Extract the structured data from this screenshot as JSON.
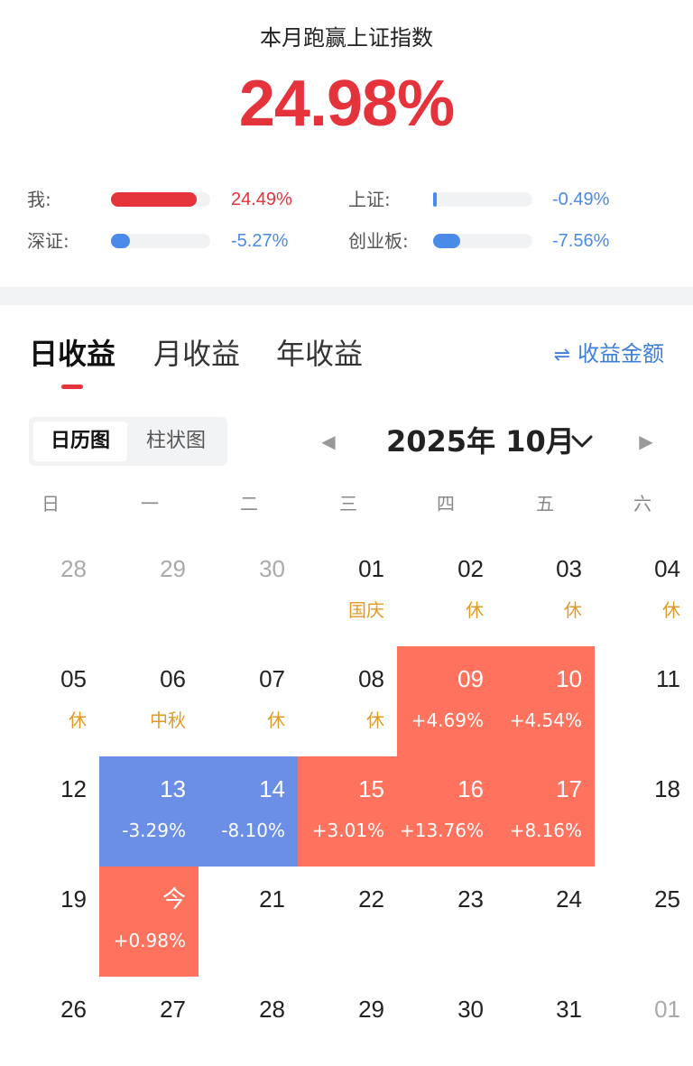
{
  "summary": {
    "title": "本月跑赢上证指数",
    "value": "24.98%"
  },
  "comparisons": [
    {
      "label": "我:",
      "value": "24.49%",
      "fraction": 0.86,
      "color": "#e4333b"
    },
    {
      "label": "上证:",
      "value": "-0.49%",
      "fraction": 0.01,
      "color": "#4a8bea"
    },
    {
      "label": "深证:",
      "value": "-5.27%",
      "fraction": 0.19,
      "color": "#4a8bea"
    },
    {
      "label": "创业板:",
      "value": "-7.56%",
      "fraction": 0.27,
      "color": "#4a8bea"
    }
  ],
  "tabs": [
    "日收益",
    "月收益",
    "年收益"
  ],
  "toggle_amount": "收益金额",
  "view_segments": [
    "日历图",
    "柱状图"
  ],
  "month_title": "2025年 10月",
  "weekdays": [
    "日",
    "一",
    "二",
    "三",
    "四",
    "五",
    "六"
  ],
  "colors": {
    "up": "#ff725e",
    "down": "#6b8fe6",
    "holiday": "#e09a2a",
    "accent": "#e4333b",
    "link": "#3d7fd9"
  },
  "calendar": [
    [
      {
        "day": "28",
        "dim": true
      },
      {
        "day": "29",
        "dim": true
      },
      {
        "day": "30",
        "dim": true
      },
      {
        "day": "01",
        "sub": "国庆",
        "kind": "holiday"
      },
      {
        "day": "02",
        "sub": "休",
        "kind": "holiday"
      },
      {
        "day": "03",
        "sub": "休",
        "kind": "holiday"
      },
      {
        "day": "04",
        "sub": "休",
        "kind": "holiday"
      }
    ],
    [
      {
        "day": "05",
        "sub": "休",
        "kind": "holiday"
      },
      {
        "day": "06",
        "sub": "中秋",
        "kind": "holiday"
      },
      {
        "day": "07",
        "sub": "休",
        "kind": "holiday"
      },
      {
        "day": "08",
        "sub": "休",
        "kind": "holiday"
      },
      {
        "day": "09",
        "sub": "+4.69%",
        "kind": "up"
      },
      {
        "day": "10",
        "sub": "+4.54%",
        "kind": "up"
      },
      {
        "day": "11"
      }
    ],
    [
      {
        "day": "12"
      },
      {
        "day": "13",
        "sub": "-3.29%",
        "kind": "down"
      },
      {
        "day": "14",
        "sub": "-8.10%",
        "kind": "down"
      },
      {
        "day": "15",
        "sub": "+3.01%",
        "kind": "up"
      },
      {
        "day": "16",
        "sub": "+13.76%",
        "kind": "up"
      },
      {
        "day": "17",
        "sub": "+8.16%",
        "kind": "up"
      },
      {
        "day": "18"
      }
    ],
    [
      {
        "day": "19"
      },
      {
        "day": "今",
        "sub": "+0.98%",
        "kind": "up"
      },
      {
        "day": "21"
      },
      {
        "day": "22"
      },
      {
        "day": "23"
      },
      {
        "day": "24"
      },
      {
        "day": "25"
      }
    ],
    [
      {
        "day": "26"
      },
      {
        "day": "27"
      },
      {
        "day": "28"
      },
      {
        "day": "29"
      },
      {
        "day": "30"
      },
      {
        "day": "31"
      },
      {
        "day": "01",
        "dim": true
      }
    ]
  ]
}
